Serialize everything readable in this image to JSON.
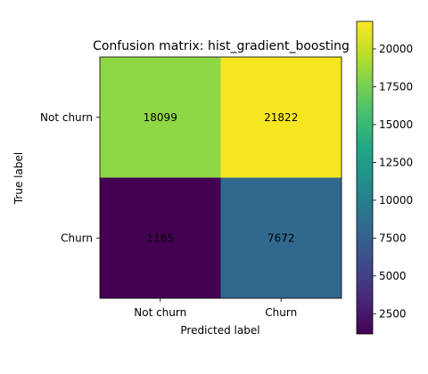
{
  "chart_data": {
    "type": "heatmap",
    "title": "Confusion matrix: hist_gradient_boosting",
    "xlabel": "Predicted label",
    "ylabel": "True label",
    "x_categories": [
      "Not churn",
      "Churn"
    ],
    "y_categories": [
      "Not churn",
      "Churn"
    ],
    "matrix": [
      [
        18099,
        21822
      ],
      [
        1165,
        7672
      ]
    ],
    "colormap": "viridis",
    "colorbar": {
      "range": [
        1165,
        21822
      ],
      "ticks": [
        2500,
        5000,
        7500,
        10000,
        12500,
        15000,
        17500,
        20000
      ]
    },
    "cell_colors": [
      [
        "#8fd744",
        "#f5e61f"
      ],
      [
        "#440154",
        "#31688e"
      ]
    ],
    "text_colors": [
      [
        "#ffffff",
        "#000000"
      ],
      [
        "#000000",
        "#000000"
      ]
    ]
  }
}
